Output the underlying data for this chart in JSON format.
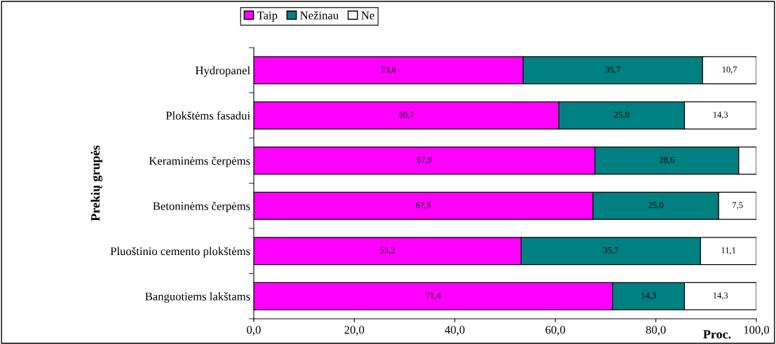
{
  "chart_data": {
    "type": "bar",
    "orientation": "horizontal",
    "stacked": true,
    "ylabel": "Prekių grupės",
    "xlabel": "Proc.",
    "categories": [
      "Hydropanel",
      "Plokštėms fasadui",
      "Keraminėms čerpėms",
      "Betoninėms čerpėms",
      "Pluoštinio cemento plokštėms",
      "Banguotiems lakštams"
    ],
    "series": [
      {
        "name": "Taip",
        "color": "#ff00ff",
        "values": [
          53.6,
          60.7,
          67.9,
          67.5,
          53.2,
          71.4
        ],
        "value_labels": [
          "53,6",
          "60,7",
          "67,9",
          "67,5",
          "53,2",
          "71,4"
        ]
      },
      {
        "name": "Nežinau",
        "color": "#008080",
        "values": [
          35.7,
          25.0,
          28.6,
          25.0,
          35.7,
          14.3
        ],
        "value_labels": [
          "35,7",
          "25,0",
          "28,6",
          "25,0",
          "35,7",
          "14,3"
        ]
      },
      {
        "name": "Ne",
        "color": "#ffffff",
        "values": [
          10.7,
          14.3,
          3.5,
          7.5,
          11.1,
          14.3
        ],
        "value_labels": [
          "10,7",
          "14,3",
          null,
          "7,5",
          "11,1",
          "14,3"
        ]
      }
    ],
    "xlim": [
      0,
      100
    ],
    "xticks": [
      {
        "value": 0,
        "label": "0,0"
      },
      {
        "value": 20,
        "label": "20,0"
      },
      {
        "value": 40,
        "label": "40,0"
      },
      {
        "value": 60,
        "label": "60,0"
      },
      {
        "value": 80,
        "label": "80,0"
      },
      {
        "value": 100,
        "label": "100,0"
      }
    ],
    "grid": false,
    "legend": "top"
  }
}
